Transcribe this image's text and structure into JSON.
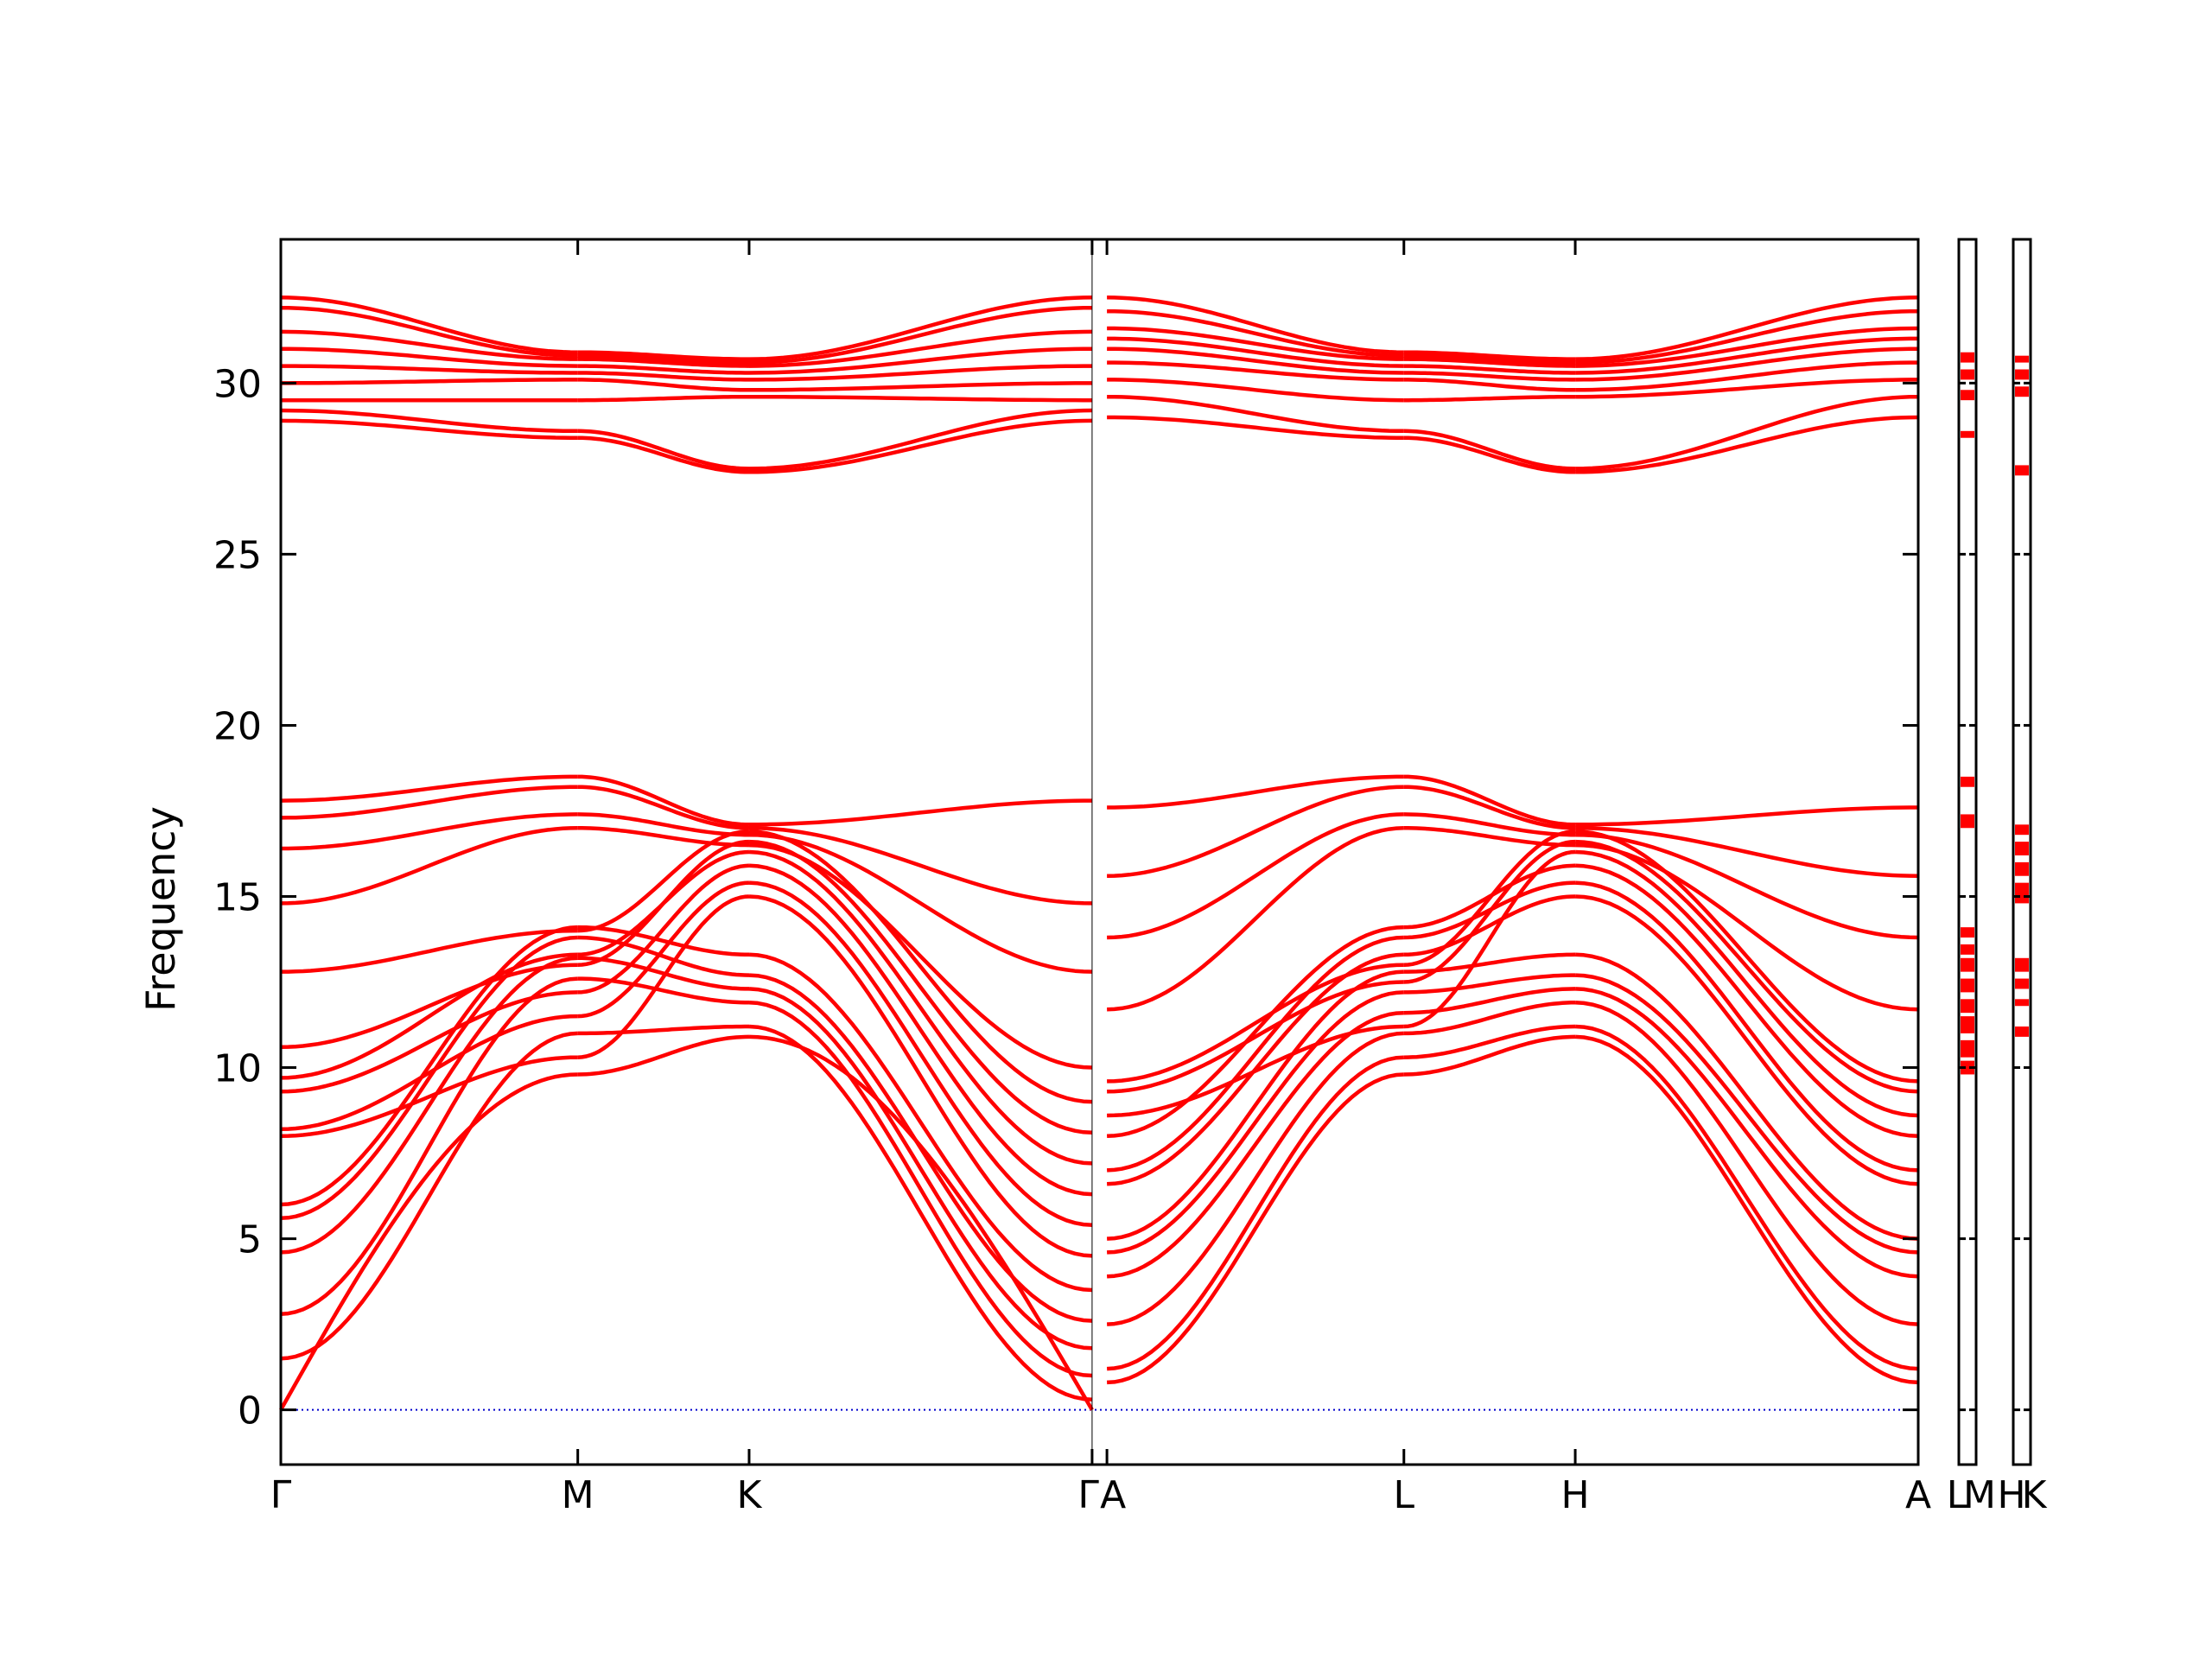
{
  "chart_data": {
    "type": "line",
    "title": "",
    "ylabel": "Frequency",
    "xlabel": "",
    "ylim": [
      -1.6,
      34.2
    ],
    "y_ticks": [
      0,
      5,
      10,
      15,
      20,
      25,
      30
    ],
    "y_tick_labels": [
      "0",
      "5",
      "10",
      "15",
      "20",
      "25",
      "30"
    ],
    "grid": false,
    "legend": "none",
    "colors": {
      "bands": "#ff0000",
      "zero_line": "#0000cc",
      "frame": "#000000"
    },
    "main_path": {
      "ticks": [
        {
          "label": "Γ",
          "pos": 0
        },
        {
          "label": "M",
          "pos": 1.0
        },
        {
          "label": "K",
          "pos": 1.577
        },
        {
          "label": "Γ",
          "pos": 2.732
        },
        {
          "label": "A",
          "pos": 2.782
        },
        {
          "label": "L",
          "pos": 3.782
        },
        {
          "label": "H",
          "pos": 4.359
        },
        {
          "label": "A",
          "pos": 5.514
        }
      ],
      "segment_values": [
        {
          "from": "Γ",
          "to": "M",
          "bands": [
            [
              0.0,
              9.8
            ],
            [
              1.5,
              11.0
            ],
            [
              2.8,
              12.6
            ],
            [
              4.6,
              13.2
            ],
            [
              5.6,
              13.8
            ],
            [
              6.0,
              14.1
            ],
            [
              8.0,
              10.3
            ],
            [
              8.2,
              11.5
            ],
            [
              9.3,
              12.2
            ],
            [
              9.7,
              13.3
            ],
            [
              10.6,
              13.0
            ],
            [
              12.8,
              14.0
            ],
            [
              14.8,
              17.0
            ],
            [
              16.4,
              17.4
            ],
            [
              17.3,
              18.2
            ],
            [
              17.8,
              18.5
            ],
            [
              28.9,
              28.4
            ],
            [
              29.2,
              28.6
            ],
            [
              29.5,
              29.5
            ],
            [
              30.0,
              30.1
            ],
            [
              30.5,
              30.3
            ],
            [
              31.0,
              30.5
            ],
            [
              31.5,
              30.7
            ],
            [
              32.2,
              30.8
            ],
            [
              32.5,
              30.9
            ]
          ]
        },
        {
          "from": "M",
          "to": "K",
          "bands": [
            [
              9.8,
              10.9
            ],
            [
              11.0,
              11.2
            ],
            [
              12.6,
              11.9
            ],
            [
              13.2,
              12.3
            ],
            [
              13.8,
              12.7
            ],
            [
              14.1,
              13.3
            ],
            [
              10.3,
              15.0
            ],
            [
              11.5,
              15.4
            ],
            [
              12.2,
              15.9
            ],
            [
              13.3,
              16.3
            ],
            [
              13.0,
              16.6
            ],
            [
              14.0,
              16.9
            ],
            [
              17.0,
              16.5
            ],
            [
              17.4,
              16.8
            ],
            [
              18.2,
              17.0
            ],
            [
              18.5,
              17.1
            ],
            [
              28.4,
              27.4
            ],
            [
              28.6,
              27.5
            ],
            [
              29.5,
              29.6
            ],
            [
              30.1,
              29.8
            ],
            [
              30.3,
              30.1
            ],
            [
              30.5,
              30.3
            ],
            [
              30.7,
              30.5
            ],
            [
              30.8,
              30.6
            ],
            [
              30.9,
              30.7
            ]
          ]
        },
        {
          "from": "K",
          "to": "Γ",
          "bands": [
            [
              10.9,
              0.0
            ],
            [
              11.2,
              0.3
            ],
            [
              11.9,
              1.0
            ],
            [
              12.3,
              1.8
            ],
            [
              12.7,
              2.6
            ],
            [
              13.3,
              3.5
            ],
            [
              15.0,
              4.5
            ],
            [
              15.4,
              5.4
            ],
            [
              15.9,
              6.3
            ],
            [
              16.3,
              7.2
            ],
            [
              16.6,
              8.1
            ],
            [
              16.9,
              9.0
            ],
            [
              16.5,
              10.0
            ],
            [
              16.8,
              12.8
            ],
            [
              17.0,
              14.8
            ],
            [
              17.1,
              17.8
            ],
            [
              27.4,
              28.9
            ],
            [
              27.5,
              29.2
            ],
            [
              29.6,
              29.5
            ],
            [
              29.8,
              30.0
            ],
            [
              30.1,
              30.5
            ],
            [
              30.3,
              31.0
            ],
            [
              30.5,
              31.5
            ],
            [
              30.6,
              32.2
            ],
            [
              30.7,
              32.5
            ]
          ]
        },
        {
          "from": "A",
          "to": "L",
          "bands": [
            [
              0.8,
              9.8
            ],
            [
              1.2,
              10.3
            ],
            [
              2.5,
              11.0
            ],
            [
              3.9,
              11.6
            ],
            [
              4.6,
              12.2
            ],
            [
              5.0,
              12.8
            ],
            [
              6.6,
              13.3
            ],
            [
              7.0,
              13.8
            ],
            [
              8.0,
              14.1
            ],
            [
              8.6,
              11.2
            ],
            [
              9.3,
              12.5
            ],
            [
              9.6,
              13.0
            ],
            [
              11.7,
              17.0
            ],
            [
              13.8,
              17.4
            ],
            [
              15.6,
              18.2
            ],
            [
              17.6,
              18.5
            ],
            [
              29.0,
              28.4
            ],
            [
              29.6,
              28.6
            ],
            [
              30.1,
              29.5
            ],
            [
              30.6,
              30.1
            ],
            [
              31.0,
              30.3
            ],
            [
              31.3,
              30.5
            ],
            [
              31.6,
              30.7
            ],
            [
              32.1,
              30.8
            ],
            [
              32.5,
              30.9
            ]
          ]
        },
        {
          "from": "L",
          "to": "H",
          "bands": [
            [
              9.8,
              10.9
            ],
            [
              10.3,
              11.2
            ],
            [
              11.0,
              11.9
            ],
            [
              11.6,
              12.3
            ],
            [
              12.2,
              12.7
            ],
            [
              12.8,
              13.3
            ],
            [
              13.3,
              15.0
            ],
            [
              13.8,
              15.4
            ],
            [
              14.1,
              15.9
            ],
            [
              11.2,
              16.3
            ],
            [
              12.5,
              16.6
            ],
            [
              13.0,
              16.9
            ],
            [
              17.0,
              16.5
            ],
            [
              17.4,
              16.8
            ],
            [
              18.2,
              17.0
            ],
            [
              18.5,
              17.1
            ],
            [
              28.4,
              27.4
            ],
            [
              28.6,
              27.5
            ],
            [
              29.5,
              29.6
            ],
            [
              30.1,
              29.8
            ],
            [
              30.3,
              30.1
            ],
            [
              30.5,
              30.3
            ],
            [
              30.7,
              30.5
            ],
            [
              30.8,
              30.6
            ],
            [
              30.9,
              30.7
            ]
          ]
        },
        {
          "from": "H",
          "to": "A",
          "bands": [
            [
              10.9,
              0.8
            ],
            [
              11.2,
              1.2
            ],
            [
              11.9,
              2.5
            ],
            [
              12.3,
              3.9
            ],
            [
              12.7,
              4.6
            ],
            [
              13.3,
              5.0
            ],
            [
              15.0,
              6.6
            ],
            [
              15.4,
              7.0
            ],
            [
              15.9,
              8.0
            ],
            [
              16.3,
              8.6
            ],
            [
              16.6,
              9.3
            ],
            [
              16.9,
              9.6
            ],
            [
              16.5,
              11.7
            ],
            [
              16.8,
              13.8
            ],
            [
              17.0,
              15.6
            ],
            [
              17.1,
              17.6
            ],
            [
              27.4,
              29.0
            ],
            [
              27.5,
              29.6
            ],
            [
              29.6,
              30.1
            ],
            [
              29.8,
              30.6
            ],
            [
              30.1,
              31.0
            ],
            [
              30.3,
              31.3
            ],
            [
              30.5,
              31.6
            ],
            [
              30.6,
              32.1
            ],
            [
              30.7,
              32.5
            ]
          ]
        }
      ]
    },
    "side_panels": [
      {
        "tick_labels": [
          "L",
          "M"
        ],
        "bands": [
          [
            9.8,
            10.2
          ],
          [
            10.3,
            10.8
          ],
          [
            11.0,
            11.5
          ],
          [
            11.6,
            12.0
          ],
          [
            12.2,
            12.6
          ],
          [
            12.8,
            13.2
          ],
          [
            13.3,
            13.6
          ],
          [
            13.8,
            14.1
          ],
          [
            17.0,
            17.4
          ],
          [
            18.2,
            18.5
          ],
          [
            28.4,
            28.6
          ],
          [
            29.5,
            29.8
          ],
          [
            30.1,
            30.4
          ],
          [
            30.6,
            30.9
          ]
        ]
      },
      {
        "tick_labels": [
          "H",
          "K"
        ],
        "bands": [
          [
            10.9,
            11.2
          ],
          [
            11.8,
            12.0
          ],
          [
            12.3,
            12.6
          ],
          [
            12.8,
            13.2
          ],
          [
            14.8,
            15.4
          ],
          [
            15.6,
            16.0
          ],
          [
            16.2,
            16.6
          ],
          [
            16.8,
            17.1
          ],
          [
            27.3,
            27.6
          ],
          [
            29.6,
            29.9
          ],
          [
            30.1,
            30.4
          ],
          [
            30.6,
            30.8
          ]
        ]
      }
    ]
  }
}
